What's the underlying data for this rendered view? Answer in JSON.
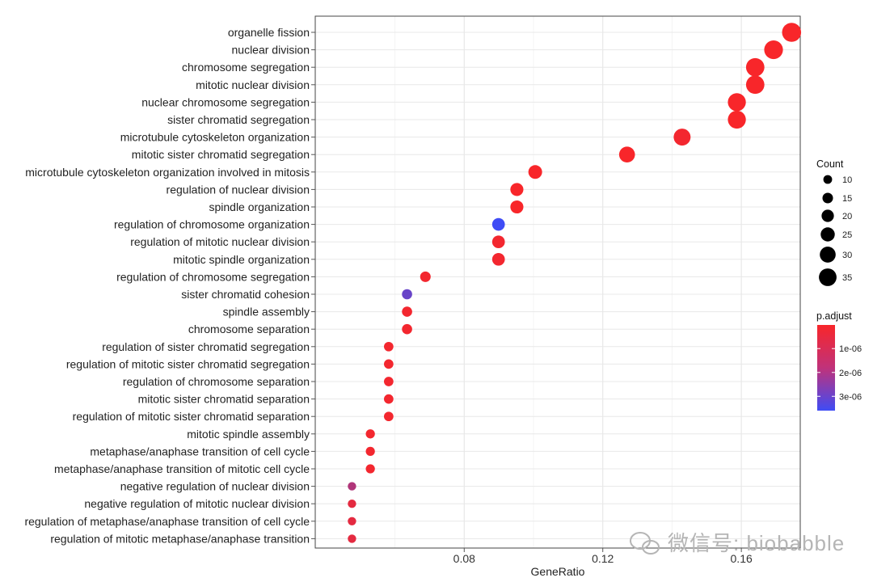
{
  "chart_data": {
    "type": "scatter",
    "xlabel": "GeneRatio",
    "ylabel": "",
    "xlim": [
      0.037,
      0.177
    ],
    "xticks": [
      0.08,
      0.12,
      0.16
    ],
    "grid": true,
    "legend_position": "right",
    "color_encoding": "p.adjust",
    "size_encoding": "Count",
    "points": [
      {
        "term": "organelle fission",
        "gene_ratio": 0.1745,
        "count": 39,
        "p_adjust": 1e-08
      },
      {
        "term": "nuclear division",
        "gene_ratio": 0.1693,
        "count": 38,
        "p_adjust": 1e-08
      },
      {
        "term": "chromosome segregation",
        "gene_ratio": 0.164,
        "count": 37,
        "p_adjust": 1e-08
      },
      {
        "term": "mitotic nuclear division",
        "gene_ratio": 0.164,
        "count": 37,
        "p_adjust": 1e-08
      },
      {
        "term": "nuclear chromosome segregation",
        "gene_ratio": 0.1587,
        "count": 36,
        "p_adjust": 1e-08
      },
      {
        "term": "sister chromatid segregation",
        "gene_ratio": 0.1587,
        "count": 36,
        "p_adjust": 1e-08
      },
      {
        "term": "microtubule cytoskeleton organization",
        "gene_ratio": 0.1429,
        "count": 33,
        "p_adjust": 1e-07
      },
      {
        "term": "mitotic sister chromatid segregation",
        "gene_ratio": 0.127,
        "count": 30,
        "p_adjust": 1e-08
      },
      {
        "term": "microtubule cytoskeleton organization involved in mitosis",
        "gene_ratio": 0.1005,
        "count": 24,
        "p_adjust": 1e-08
      },
      {
        "term": "regulation of nuclear division",
        "gene_ratio": 0.0952,
        "count": 22,
        "p_adjust": 1e-08
      },
      {
        "term": "spindle organization",
        "gene_ratio": 0.0952,
        "count": 22,
        "p_adjust": 1e-08
      },
      {
        "term": "regulation of chromosome organization",
        "gene_ratio": 0.0899,
        "count": 21,
        "p_adjust": 3.6e-06
      },
      {
        "term": "regulation of mitotic nuclear division",
        "gene_ratio": 0.0899,
        "count": 21,
        "p_adjust": 1e-07
      },
      {
        "term": "mitotic spindle organization",
        "gene_ratio": 0.0899,
        "count": 21,
        "p_adjust": 1e-07
      },
      {
        "term": "regulation of chromosome segregation",
        "gene_ratio": 0.0688,
        "count": 15,
        "p_adjust": 1e-07
      },
      {
        "term": "sister chromatid cohesion",
        "gene_ratio": 0.0635,
        "count": 14,
        "p_adjust": 2.8e-06
      },
      {
        "term": "spindle assembly",
        "gene_ratio": 0.0635,
        "count": 14,
        "p_adjust": 1e-07
      },
      {
        "term": "chromosome separation",
        "gene_ratio": 0.0635,
        "count": 14,
        "p_adjust": 1e-07
      },
      {
        "term": "regulation of sister chromatid segregation",
        "gene_ratio": 0.0582,
        "count": 12,
        "p_adjust": 1e-07
      },
      {
        "term": "regulation of mitotic sister chromatid segregation",
        "gene_ratio": 0.0582,
        "count": 12,
        "p_adjust": 1e-07
      },
      {
        "term": "regulation of chromosome separation",
        "gene_ratio": 0.0582,
        "count": 12,
        "p_adjust": 1e-07
      },
      {
        "term": "mitotic sister chromatid separation",
        "gene_ratio": 0.0582,
        "count": 12,
        "p_adjust": 1e-07
      },
      {
        "term": "regulation of mitotic sister chromatid separation",
        "gene_ratio": 0.0582,
        "count": 12,
        "p_adjust": 1e-07
      },
      {
        "term": "mitotic spindle assembly",
        "gene_ratio": 0.0529,
        "count": 11,
        "p_adjust": 1e-07
      },
      {
        "term": "metaphase/anaphase transition of cell cycle",
        "gene_ratio": 0.0529,
        "count": 11,
        "p_adjust": 1e-07
      },
      {
        "term": "metaphase/anaphase transition of mitotic cell cycle",
        "gene_ratio": 0.0529,
        "count": 11,
        "p_adjust": 1e-07
      },
      {
        "term": "negative regulation of nuclear division",
        "gene_ratio": 0.0476,
        "count": 9,
        "p_adjust": 1.4e-06
      },
      {
        "term": "negative regulation of mitotic nuclear division",
        "gene_ratio": 0.0476,
        "count": 9,
        "p_adjust": 4e-07
      },
      {
        "term": "regulation of metaphase/anaphase transition of cell cycle",
        "gene_ratio": 0.0476,
        "count": 9,
        "p_adjust": 4e-07
      },
      {
        "term": "regulation of mitotic metaphase/anaphase transition",
        "gene_ratio": 0.0476,
        "count": 9,
        "p_adjust": 4e-07
      }
    ],
    "size_legend": {
      "title": "Count",
      "values": [
        10,
        15,
        20,
        25,
        30,
        35
      ],
      "labels": [
        "10",
        "15",
        "20",
        "25",
        "30",
        "35"
      ]
    },
    "color_legend": {
      "title": "p.adjust",
      "range": [
        1e-08,
        3.6e-06
      ],
      "ticks": [
        1e-06,
        2e-06,
        3e-06
      ],
      "tick_labels": [
        "1e-06",
        "2e-06",
        "3e-06"
      ],
      "low_color": "#f8262a",
      "high_color": "#3f4cf5"
    }
  },
  "watermark": {
    "text": "微信号: biobabble",
    "icon": "wechat-icon"
  },
  "colors": {
    "panel_border": "#444444",
    "grid_major": "#e8e8e8",
    "grid_minor": "#f4f4f4",
    "axis_tick": "#555555"
  }
}
